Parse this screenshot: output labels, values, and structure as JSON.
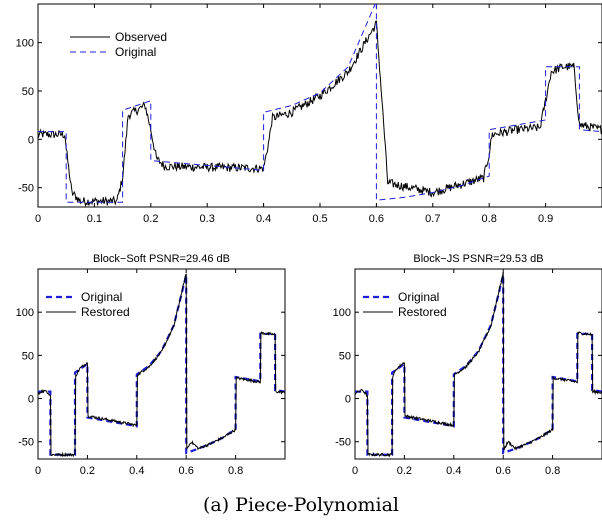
{
  "caption": "(a) Piece-Polynomial",
  "colors": {
    "observed": "#000000",
    "original": "#1f1fd6",
    "restored": "#000000",
    "axis": "#000000"
  },
  "chart_data": [
    {
      "type": "line",
      "title": "",
      "xlabel": "",
      "ylabel": "",
      "xlim": [
        0,
        1
      ],
      "ylim": [
        -70,
        140
      ],
      "xticks": [
        "0",
        "0.1",
        "0.2",
        "0.3",
        "0.4",
        "0.5",
        "0.6",
        "0.7",
        "0.8",
        "0.9"
      ],
      "xtick_values": [
        0,
        0.1,
        0.2,
        0.3,
        0.4,
        0.5,
        0.6,
        0.7,
        0.8,
        0.9
      ],
      "yticks": [
        "-50",
        "0",
        "50",
        "100"
      ],
      "ytick_values": [
        -50,
        0,
        50,
        100
      ],
      "legend": {
        "position": "top-left",
        "entries": [
          "Observed",
          "Original"
        ]
      },
      "grid": false,
      "series": [
        {
          "name": "Observed",
          "style": "solid-noisy",
          "x": [
            0,
            0.048,
            0.05,
            0.06,
            0.075,
            0.14,
            0.15,
            0.16,
            0.19,
            0.2,
            0.21,
            0.225,
            0.4,
            0.41,
            0.415,
            0.45,
            0.5,
            0.55,
            0.59,
            0.6,
            0.61,
            0.62,
            0.7,
            0.79,
            0.8,
            0.805,
            0.85,
            0.89,
            0.9,
            0.91,
            0.93,
            0.95,
            0.96,
            1.0
          ],
          "y": [
            5,
            5,
            -10,
            -55,
            -64,
            -64,
            -40,
            25,
            35,
            10,
            -20,
            -28,
            -30,
            0,
            22,
            28,
            45,
            70,
            110,
            120,
            40,
            -45,
            -55,
            -40,
            -15,
            5,
            10,
            12,
            40,
            70,
            75,
            75,
            15,
            10
          ]
        },
        {
          "name": "Original",
          "style": "dashed",
          "x": [
            0,
            0.05,
            0.05,
            0.15,
            0.15,
            0.2,
            0.2,
            0.4,
            0.4,
            0.45,
            0.5,
            0.55,
            0.6,
            0.6,
            0.65,
            0.7,
            0.75,
            0.8,
            0.8,
            0.9,
            0.9,
            0.96,
            0.96,
            1.0
          ],
          "y": [
            8,
            8,
            -65,
            -65,
            30,
            40,
            -22,
            -32,
            28,
            35,
            48,
            75,
            143,
            -63,
            -60,
            -55,
            -48,
            -38,
            10,
            20,
            75,
            75,
            10,
            8
          ]
        }
      ]
    },
    {
      "type": "line",
      "title": "Block−Soft PSNR=29.46 dB",
      "xlabel": "",
      "ylabel": "",
      "xlim": [
        0,
        1
      ],
      "ylim": [
        -70,
        150
      ],
      "xticks": [
        "0",
        "0.2",
        "0.4",
        "0.6",
        "0.8"
      ],
      "xtick_values": [
        0,
        0.2,
        0.4,
        0.6,
        0.8
      ],
      "yticks": [
        "-50",
        "0",
        "50",
        "100"
      ],
      "ytick_values": [
        -50,
        0,
        50,
        100
      ],
      "legend": {
        "position": "top-left",
        "entries": [
          "Original",
          "Restored"
        ]
      },
      "grid": false,
      "series": [
        {
          "name": "Original",
          "style": "dashed-thick",
          "x": [
            0,
            0.05,
            0.05,
            0.15,
            0.15,
            0.2,
            0.2,
            0.4,
            0.4,
            0.45,
            0.5,
            0.55,
            0.6,
            0.6,
            0.65,
            0.7,
            0.75,
            0.8,
            0.8,
            0.9,
            0.9,
            0.96,
            0.96,
            1.0
          ],
          "y": [
            8,
            8,
            -65,
            -65,
            30,
            40,
            -22,
            -32,
            28,
            38,
            55,
            85,
            143,
            -63,
            -58,
            -52,
            -45,
            -35,
            25,
            20,
            75,
            75,
            10,
            8
          ]
        },
        {
          "name": "Restored",
          "style": "solid",
          "x": [
            0,
            0.03,
            0.05,
            0.05,
            0.15,
            0.15,
            0.17,
            0.2,
            0.2,
            0.4,
            0.4,
            0.45,
            0.5,
            0.55,
            0.6,
            0.6,
            0.62,
            0.65,
            0.7,
            0.75,
            0.8,
            0.8,
            0.9,
            0.9,
            0.96,
            0.96,
            1.0
          ],
          "y": [
            6,
            10,
            3,
            -65,
            -65,
            25,
            35,
            42,
            -20,
            -31,
            27,
            37,
            54,
            84,
            145,
            -60,
            -50,
            -58,
            -52,
            -45,
            -36,
            24,
            19,
            76,
            74,
            8,
            7
          ]
        }
      ]
    },
    {
      "type": "line",
      "title": "Block−JS PSNR=29.53 dB",
      "xlabel": "",
      "ylabel": "",
      "xlim": [
        0,
        1
      ],
      "ylim": [
        -70,
        150
      ],
      "xticks": [
        "0",
        "0.2",
        "0.4",
        "0.6",
        "0.8"
      ],
      "xtick_values": [
        0,
        0.2,
        0.4,
        0.6,
        0.8
      ],
      "yticks": [
        "-50",
        "0",
        "50",
        "100"
      ],
      "ytick_values": [
        -50,
        0,
        50,
        100
      ],
      "legend": {
        "position": "top-left",
        "entries": [
          "Original",
          "Restored"
        ]
      },
      "grid": false,
      "series": [
        {
          "name": "Original",
          "style": "dashed-thick",
          "x": [
            0,
            0.05,
            0.05,
            0.15,
            0.15,
            0.2,
            0.2,
            0.4,
            0.4,
            0.45,
            0.5,
            0.55,
            0.6,
            0.6,
            0.65,
            0.7,
            0.75,
            0.8,
            0.8,
            0.9,
            0.9,
            0.96,
            0.96,
            1.0
          ],
          "y": [
            8,
            8,
            -65,
            -65,
            30,
            40,
            -22,
            -32,
            28,
            38,
            55,
            85,
            143,
            -63,
            -58,
            -52,
            -45,
            -35,
            25,
            20,
            75,
            75,
            10,
            8
          ]
        },
        {
          "name": "Restored",
          "style": "solid",
          "x": [
            0,
            0.03,
            0.05,
            0.05,
            0.15,
            0.15,
            0.17,
            0.2,
            0.2,
            0.4,
            0.4,
            0.45,
            0.5,
            0.55,
            0.6,
            0.6,
            0.62,
            0.65,
            0.7,
            0.75,
            0.8,
            0.8,
            0.9,
            0.9,
            0.96,
            0.96,
            1.0
          ],
          "y": [
            6,
            10,
            3,
            -65,
            -65,
            25,
            35,
            42,
            -20,
            -31,
            27,
            37,
            54,
            84,
            145,
            -60,
            -50,
            -58,
            -52,
            -45,
            -36,
            24,
            19,
            76,
            74,
            8,
            7
          ]
        }
      ]
    }
  ]
}
